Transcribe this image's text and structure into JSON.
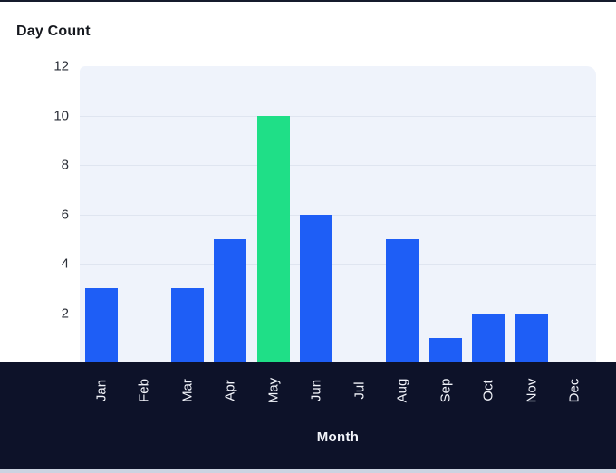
{
  "chart_data": {
    "type": "bar",
    "title": "Day Count",
    "xlabel": "Month",
    "ylabel": "Day Count",
    "categories": [
      "Jan",
      "Feb",
      "Mar",
      "Apr",
      "May",
      "Jun",
      "Jul",
      "Aug",
      "Sep",
      "Oct",
      "Nov",
      "Dec"
    ],
    "values": [
      3,
      0,
      3,
      5,
      10,
      6,
      0,
      5,
      1,
      2,
      2,
      0
    ],
    "yticks": [
      2,
      4,
      6,
      8,
      10,
      12
    ],
    "ylim": [
      0,
      12
    ],
    "grid": "horizontal",
    "legend": "none",
    "highlight_index": 4,
    "colors": {
      "bar": "#1e5ef6",
      "highlight_bar": "#1fdf87",
      "plot_bg": "#eff3fb",
      "gridline": "#dfe5f0",
      "band_bg": "#0d1229",
      "band_text": "#f2f4fa",
      "title_text": "#15181e",
      "tick_text": "#2a2e37",
      "top_edge": "#151b2c",
      "bottom_edge": "#ccd3e1"
    }
  }
}
